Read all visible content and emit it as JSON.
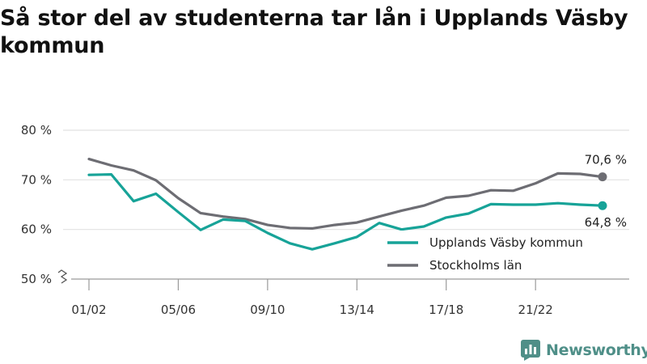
{
  "title": "Så stor del av studenterna tar lån i Upplands Väsby kommun",
  "brand": {
    "name": "Newsworthy",
    "icon": "bar-chart-logo-icon"
  },
  "chart_data": {
    "type": "line",
    "title": "Så stor del av studenterna tar lån i Upplands Väsby kommun",
    "xlabel": "",
    "ylabel": "",
    "ylim": [
      50,
      80
    ],
    "y_axis_break": true,
    "y_ticks": [
      50,
      60,
      70,
      80
    ],
    "y_tick_labels": [
      "50 %",
      "60 %",
      "70 %",
      "80 %"
    ],
    "grid": "horizontal",
    "legend_placement": "bottom-right",
    "categories": [
      "01/02",
      "02/03",
      "03/04",
      "04/05",
      "05/06",
      "06/07",
      "07/08",
      "08/09",
      "09/10",
      "10/11",
      "11/12",
      "12/13",
      "13/14",
      "14/15",
      "15/16",
      "16/17",
      "17/18",
      "18/19",
      "19/20",
      "20/21",
      "21/22",
      "22/23",
      "23/24",
      "24/25"
    ],
    "x_tick_labels": [
      "01/02",
      "05/06",
      "09/10",
      "13/14",
      "17/18",
      "21/22"
    ],
    "x_tick_indices": [
      0,
      4,
      8,
      12,
      16,
      20
    ],
    "series": [
      {
        "name": "Upplands Väsby kommun",
        "color": "#17a398",
        "values": [
          71.0,
          71.1,
          65.7,
          67.2,
          63.5,
          59.9,
          62.0,
          61.7,
          59.3,
          57.2,
          56.0,
          57.2,
          58.5,
          61.3,
          60.0,
          60.6,
          62.4,
          63.2,
          65.1,
          65.0,
          65.0,
          65.3,
          65.0,
          64.8
        ],
        "end_label": "64,8 %"
      },
      {
        "name": "Stockholms län",
        "color": "#6d6d73",
        "values": [
          74.2,
          72.9,
          71.9,
          69.9,
          66.3,
          63.3,
          62.6,
          62.1,
          60.9,
          60.3,
          60.2,
          60.9,
          61.4,
          62.6,
          63.8,
          64.8,
          66.4,
          66.8,
          67.9,
          67.8,
          69.3,
          71.3,
          71.2,
          70.6
        ],
        "end_label": "70,6 %"
      }
    ]
  }
}
